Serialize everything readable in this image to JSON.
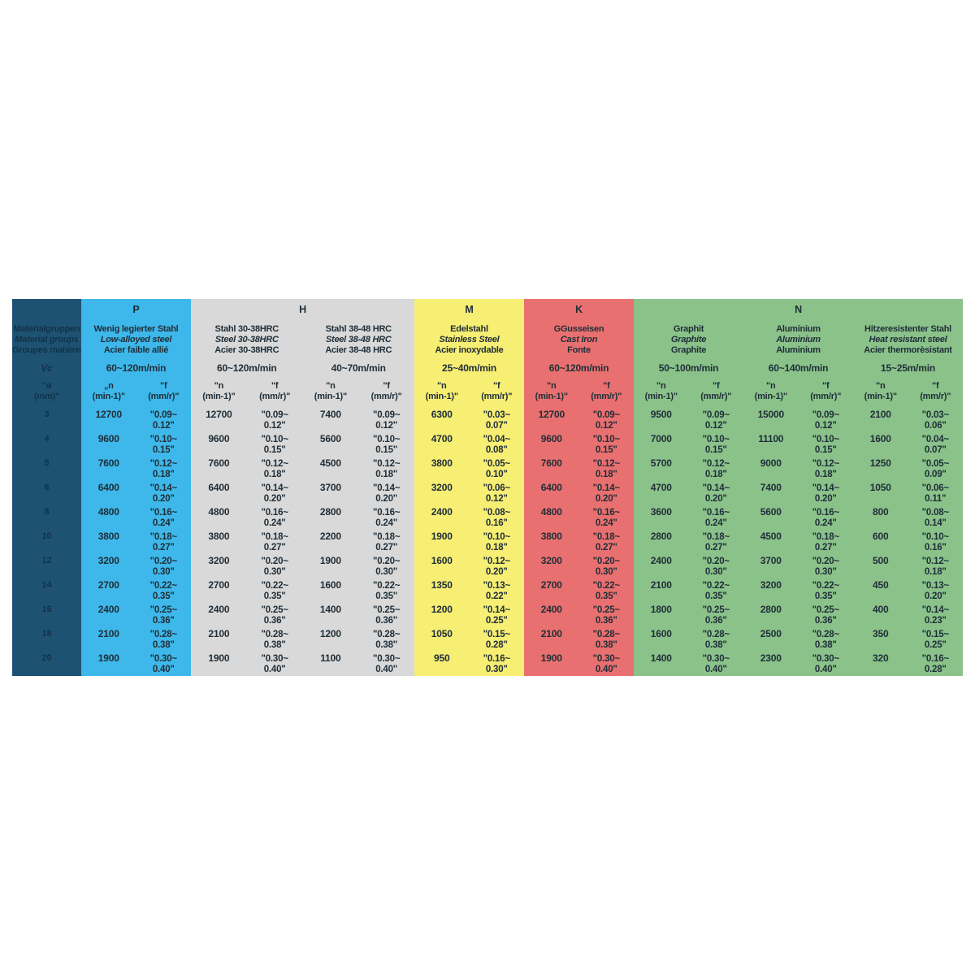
{
  "table": {
    "corner": {
      "bg": "#1e5273",
      "text_color": "#123249",
      "material_groups_lines": [
        "Materialgruppen",
        "Material groups",
        "Groupes matières"
      ],
      "vc_label": "Vc",
      "dia_header_lines": [
        "\"ø",
        "(mm)\""
      ]
    },
    "diameters": [
      "3",
      "4",
      "5",
      "6",
      "8",
      "10",
      "12",
      "14",
      "16",
      "18",
      "20"
    ],
    "groups": [
      {
        "letter": "P",
        "color": "#3eb8ea",
        "columns": [
          {
            "material_lines": [
              "Wenig legierter Stahl",
              "Low-alloyed steel",
              "Acier faible allié"
            ],
            "vc": "60~120m/min",
            "n_header_lines": [
              "„n",
              "(min-1)\""
            ],
            "f_header_lines": [
              "\"f",
              "(mm/r)\""
            ],
            "rows": [
              [
                "12700",
                "\"0.09~",
                "0.12\""
              ],
              [
                "9600",
                "\"0.10~",
                "0.15\""
              ],
              [
                "7600",
                "\"0.12~",
                "0.18\""
              ],
              [
                "6400",
                "\"0.14~",
                "0.20\""
              ],
              [
                "4800",
                "\"0.16~",
                "0.24\""
              ],
              [
                "3800",
                "\"0.18~",
                "0.27\""
              ],
              [
                "3200",
                "\"0.20~",
                "0.30\""
              ],
              [
                "2700",
                "\"0.22~",
                "0.35\""
              ],
              [
                "2400",
                "\"0.25~",
                "0.36\""
              ],
              [
                "2100",
                "\"0.28~",
                "0.38\""
              ],
              [
                "1900",
                "\"0.30~",
                "0.40\""
              ]
            ]
          }
        ]
      },
      {
        "letter": "H",
        "color": "#d9d9d9",
        "columns": [
          {
            "material_lines": [
              "Stahl 30-38HRC",
              "Steel 30-38HRC",
              "Acier 30-38HRC"
            ],
            "vc": "60~120m/min",
            "n_header_lines": [
              "\"n",
              "(min-1)\""
            ],
            "f_header_lines": [
              "\"f",
              "(mm/r)\""
            ],
            "rows": [
              [
                "12700",
                "\"0.09~",
                "0.12\""
              ],
              [
                "9600",
                "\"0.10~",
                "0.15\""
              ],
              [
                "7600",
                "\"0.12~",
                "0.18\""
              ],
              [
                "6400",
                "\"0.14~",
                "0.20\""
              ],
              [
                "4800",
                "\"0.16~",
                "0.24\""
              ],
              [
                "3800",
                "\"0.18~",
                "0.27\""
              ],
              [
                "3200",
                "\"0.20~",
                "0.30\""
              ],
              [
                "2700",
                "\"0.22~",
                "0.35\""
              ],
              [
                "2400",
                "\"0.25~",
                "0.36\""
              ],
              [
                "2100",
                "\"0.28~",
                "0.38\""
              ],
              [
                "1900",
                "\"0.30~",
                "0.40\""
              ]
            ]
          },
          {
            "material_lines": [
              "Stahl 38-48 HRC",
              "Steel 38-48 HRC",
              "Acier 38-48 HRC"
            ],
            "vc": "40~70m/min",
            "n_header_lines": [
              "\"n",
              "(min-1)\""
            ],
            "f_header_lines": [
              "\"f",
              "(mm/r)\""
            ],
            "rows": [
              [
                "7400",
                "\"0.09~",
                "0.12\""
              ],
              [
                "5600",
                "\"0.10~",
                "0.15\""
              ],
              [
                "4500",
                "\"0.12~",
                "0.18\""
              ],
              [
                "3700",
                "\"0.14~",
                "0.20\""
              ],
              [
                "2800",
                "\"0.16~",
                "0.24\""
              ],
              [
                "2200",
                "\"0.18~",
                "0.27\""
              ],
              [
                "1900",
                "\"0.20~",
                "0.30\""
              ],
              [
                "1600",
                "\"0.22~",
                "0.35\""
              ],
              [
                "1400",
                "\"0.25~",
                "0.36\""
              ],
              [
                "1200",
                "\"0.28~",
                "0.38\""
              ],
              [
                "1100",
                "\"0.30~",
                "0.40\""
              ]
            ]
          }
        ]
      },
      {
        "letter": "M",
        "color": "#f7ee74",
        "columns": [
          {
            "material_lines": [
              "Edelstahl",
              "Stainless Steel",
              "Acier inoxydable"
            ],
            "vc": "25~40m/min",
            "n_header_lines": [
              "\"n",
              "(min-1)\""
            ],
            "f_header_lines": [
              "\"f",
              "(mm/r)\""
            ],
            "rows": [
              [
                "6300",
                "\"0.03~",
                "0.07\""
              ],
              [
                "4700",
                "\"0.04~",
                "0.08\""
              ],
              [
                "3800",
                "\"0.05~",
                "0.10\""
              ],
              [
                "3200",
                "\"0.06~",
                "0.12\""
              ],
              [
                "2400",
                "\"0.08~",
                "0.16\""
              ],
              [
                "1900",
                "\"0.10~",
                "0.18\""
              ],
              [
                "1600",
                "\"0.12~",
                "0.20\""
              ],
              [
                "1350",
                "\"0.13~",
                "0.22\""
              ],
              [
                "1200",
                "\"0.14~",
                "0.25\""
              ],
              [
                "1050",
                "\"0.15~",
                "0.28\""
              ],
              [
                "950",
                "\"0.16~",
                "0.30\""
              ]
            ]
          }
        ]
      },
      {
        "letter": "K",
        "color": "#e97070",
        "columns": [
          {
            "material_lines": [
              "GGusseisen",
              "Cast Iron",
              "Fonte"
            ],
            "vc": "60~120m/min",
            "n_header_lines": [
              "\"n",
              "(min-1)\""
            ],
            "f_header_lines": [
              "\"f",
              "(mm/r)\""
            ],
            "rows": [
              [
                "12700",
                "\"0.09~",
                "0.12\""
              ],
              [
                "9600",
                "\"0.10~",
                "0.15\""
              ],
              [
                "7600",
                "\"0.12~",
                "0.18\""
              ],
              [
                "6400",
                "\"0.14~",
                "0.20\""
              ],
              [
                "4800",
                "\"0.16~",
                "0.24\""
              ],
              [
                "3800",
                "\"0.18~",
                "0.27\""
              ],
              [
                "3200",
                "\"0.20~",
                "0.30\""
              ],
              [
                "2700",
                "\"0.22~",
                "0.35\""
              ],
              [
                "2400",
                "\"0.25~",
                "0.36\""
              ],
              [
                "2100",
                "\"0.28~",
                "0.38\""
              ],
              [
                "1900",
                "\"0.30~",
                "0.40\""
              ]
            ]
          }
        ]
      },
      {
        "letter": "N",
        "color": "#8ac28a",
        "columns": [
          {
            "material_lines": [
              "Graphit",
              "Graphite",
              "Graphite"
            ],
            "vc": "50~100m/min",
            "n_header_lines": [
              "\"n",
              "(min-1)\""
            ],
            "f_header_lines": [
              "\"f",
              "(mm/r)\""
            ],
            "rows": [
              [
                "9500",
                "\"0.09~",
                "0.12\""
              ],
              [
                "7000",
                "\"0.10~",
                "0.15\""
              ],
              [
                "5700",
                "\"0.12~",
                "0.18\""
              ],
              [
                "4700",
                "\"0.14~",
                "0.20\""
              ],
              [
                "3600",
                "\"0.16~",
                "0.24\""
              ],
              [
                "2800",
                "\"0.18~",
                "0.27\""
              ],
              [
                "2400",
                "\"0.20~",
                "0.30\""
              ],
              [
                "2100",
                "\"0.22~",
                "0.35\""
              ],
              [
                "1800",
                "\"0.25~",
                "0.36\""
              ],
              [
                "1600",
                "\"0.28~",
                "0.38\""
              ],
              [
                "1400",
                "\"0.30~",
                "0.40\""
              ]
            ]
          },
          {
            "material_lines": [
              "Aluminium",
              "Aluminium",
              "Aluminium"
            ],
            "vc": "60~140m/min",
            "n_header_lines": [
              "\"n",
              "(min-1)\""
            ],
            "f_header_lines": [
              "\"f",
              "(mm/r)\""
            ],
            "rows": [
              [
                "15000",
                "\"0.09~",
                "0.12\""
              ],
              [
                "11100",
                "\"0.10~",
                "0.15\""
              ],
              [
                "9000",
                "\"0.12~",
                "0.18\""
              ],
              [
                "7400",
                "\"0.14~",
                "0.20\""
              ],
              [
                "5600",
                "\"0.16~",
                "0.24\""
              ],
              [
                "4500",
                "\"0.18~",
                "0.27\""
              ],
              [
                "3700",
                "\"0.20~",
                "0.30\""
              ],
              [
                "3200",
                "\"0.22~",
                "0.35\""
              ],
              [
                "2800",
                "\"0.25~",
                "0.36\""
              ],
              [
                "2500",
                "\"0.28~",
                "0.38\""
              ],
              [
                "2300",
                "\"0.30~",
                "0.40\""
              ]
            ]
          },
          {
            "material_lines": [
              "Hitzeresistenter Stahl",
              "Heat resistant steel",
              "Acier thermorèsistant"
            ],
            "vc": "15~25m/min",
            "n_header_lines": [
              "\"n",
              "(min-1)\""
            ],
            "f_header_lines": [
              "\"f",
              "(mm/r)\""
            ],
            "rows": [
              [
                "2100",
                "\"0.03~",
                "0.06\""
              ],
              [
                "1600",
                "\"0.04~",
                "0.07\""
              ],
              [
                "1250",
                "\"0.05~",
                "0.09\""
              ],
              [
                "1050",
                "\"0.06~",
                "0.11\""
              ],
              [
                "800",
                "\"0.08~",
                "0.14\""
              ],
              [
                "600",
                "\"0.10~",
                "0.16\""
              ],
              [
                "500",
                "\"0.12~",
                "0.18\""
              ],
              [
                "450",
                "\"0.13~",
                "0.20\""
              ],
              [
                "400",
                "\"0.14~",
                "0.23\""
              ],
              [
                "350",
                "\"0.15~",
                "0.25\""
              ],
              [
                "320",
                "\"0.16~",
                "0.28\""
              ]
            ]
          }
        ]
      }
    ]
  }
}
